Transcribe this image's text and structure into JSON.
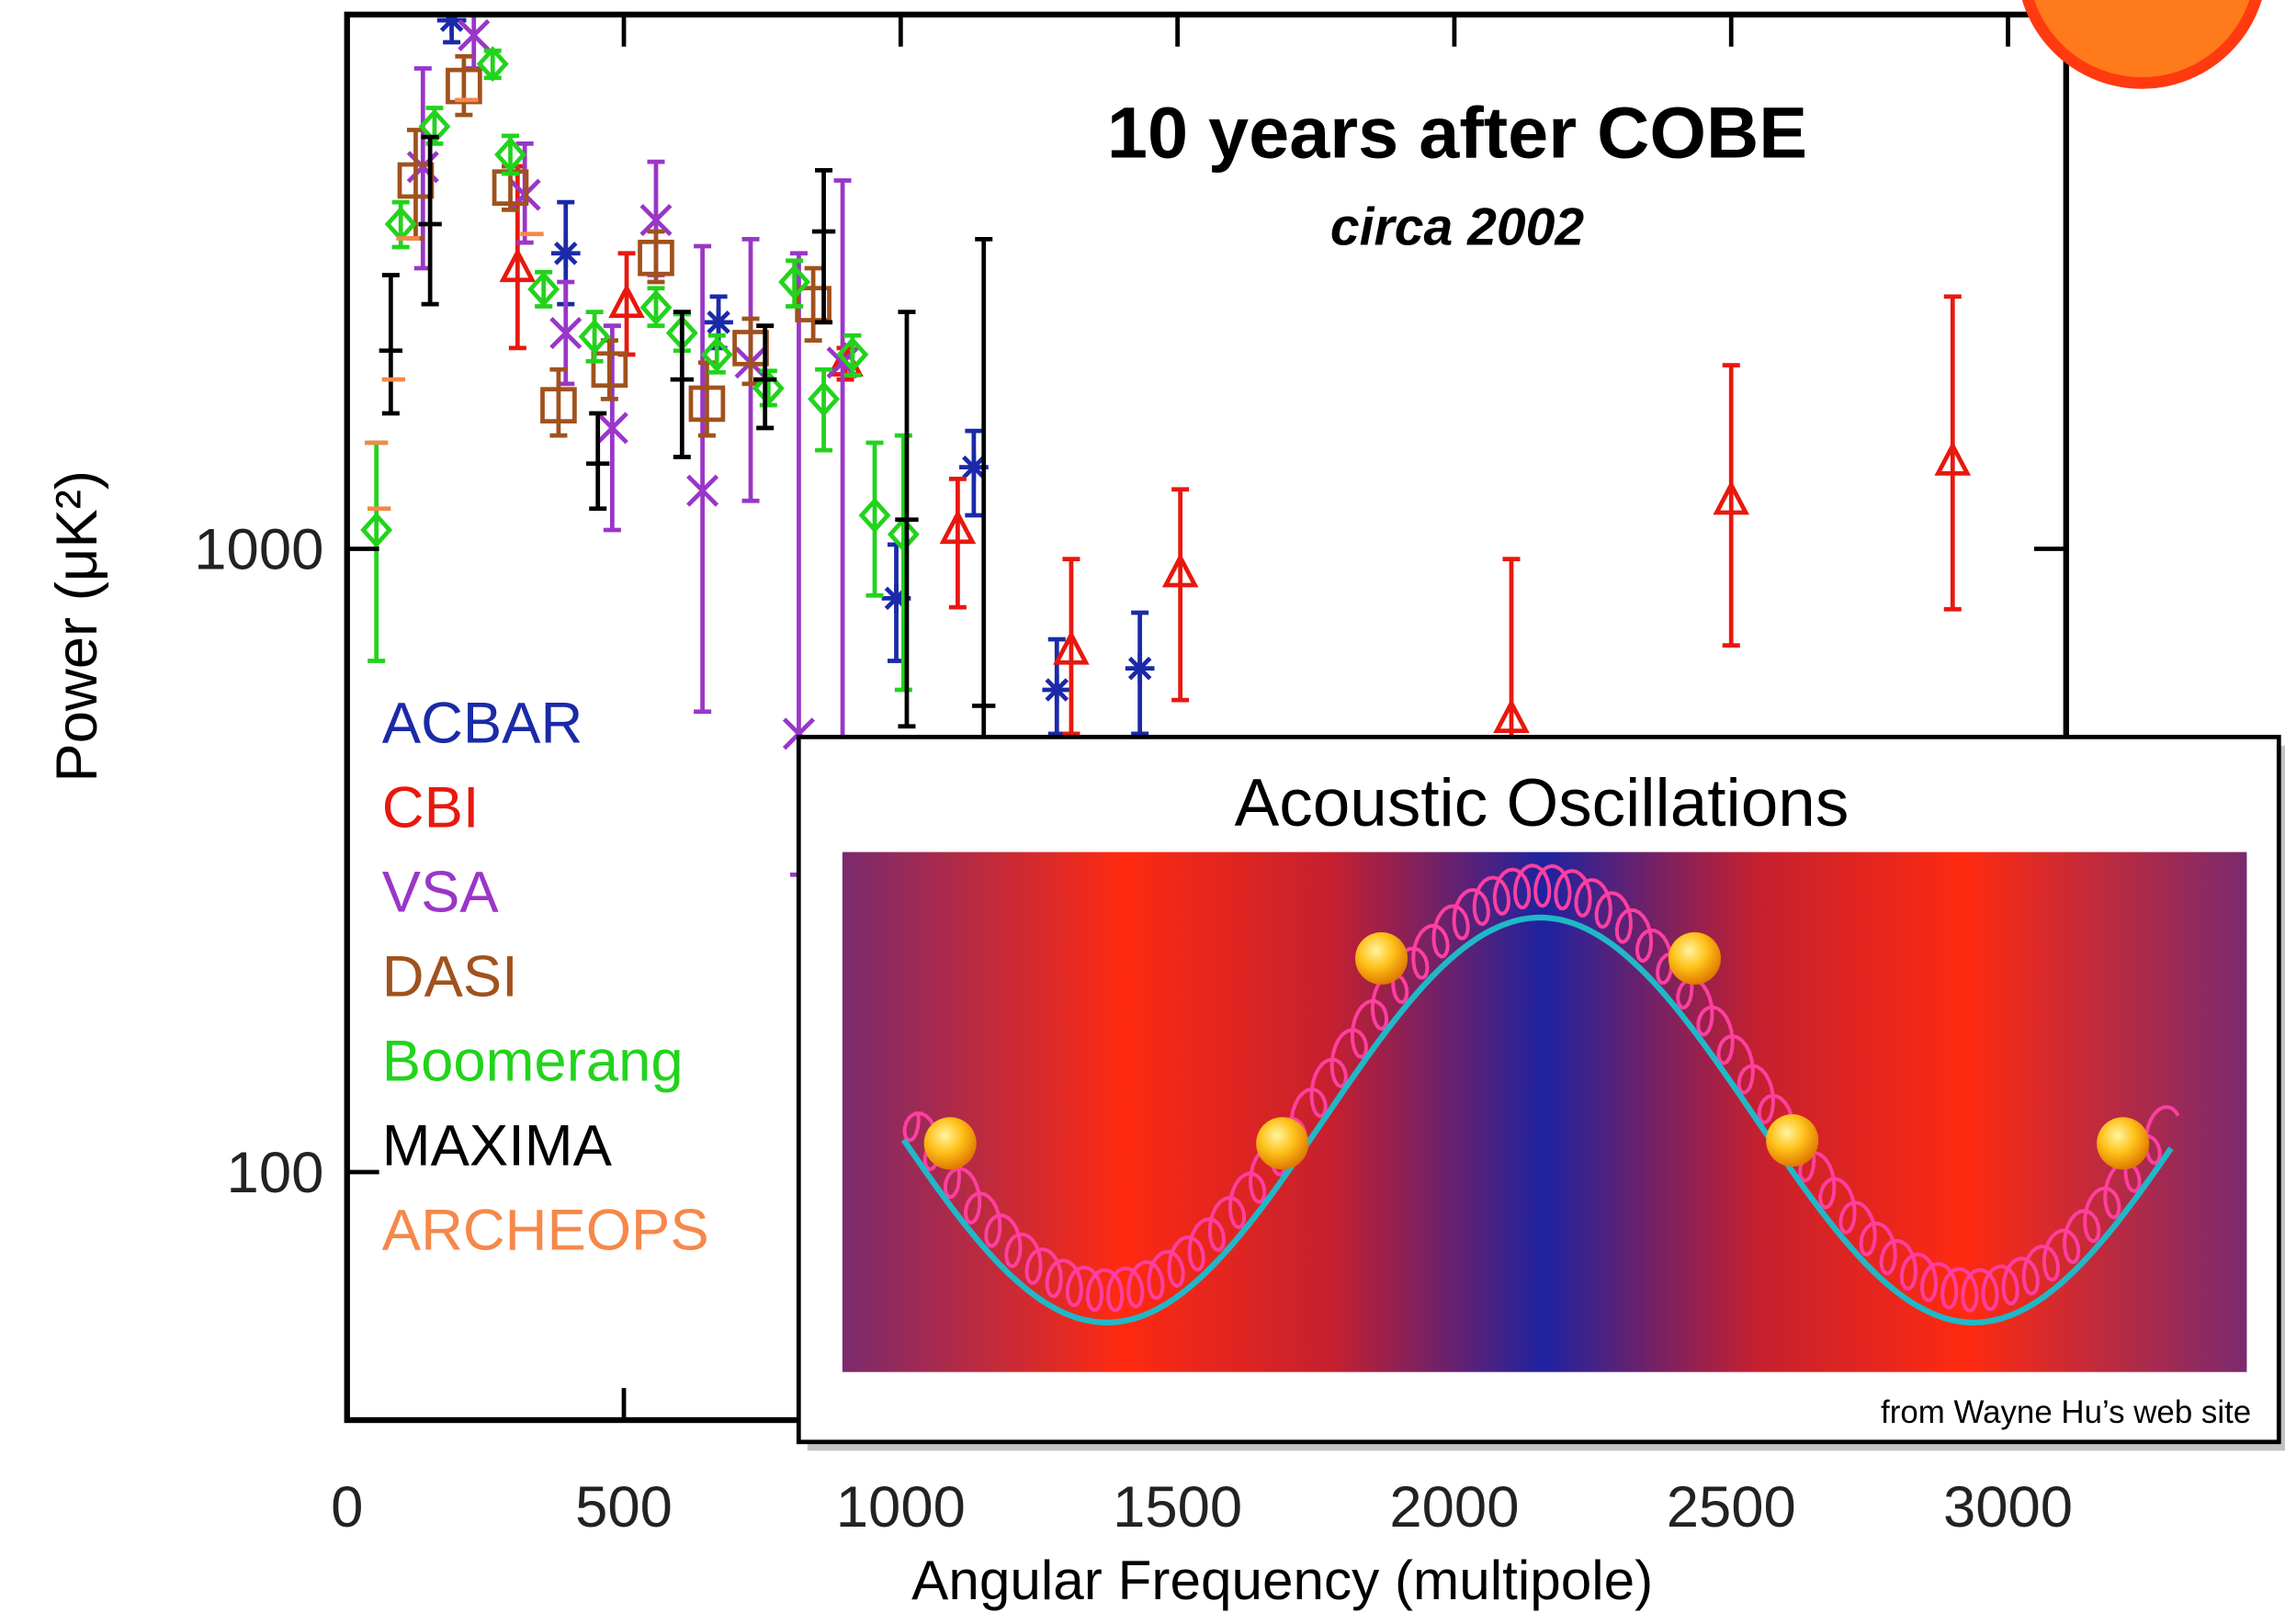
{
  "chart_data": {
    "type": "scatter",
    "title": "10 years after COBE",
    "subtitle": "circa 2002",
    "x_label": "Angular Frequency (multipole)",
    "y_label": "Power  (μK²)",
    "log_y": true,
    "xlim": [
      0,
      3105
    ],
    "ylim": [
      40,
      7200
    ],
    "xticks": [
      0,
      500,
      1000,
      1500,
      2000,
      2500,
      3000
    ],
    "yticks": [
      100,
      1000
    ],
    "legend": "left",
    "series": [
      {
        "name": "ACBAR",
        "color": "#1a2aa8",
        "marker": "asterisk",
        "x": [
          189,
          395,
          671,
          992,
          1132,
          1282,
          1432
        ],
        "values": [
          7050,
          2980,
          2310,
          833,
          1352,
          594,
          643
        ],
        "lower": [
          6500,
          2470,
          2100,
          661,
          1132,
          505,
          505
        ],
        "upper": [
          7300,
          3600,
          2540,
          1016,
          1546,
          716,
          790
        ]
      },
      {
        "name": "CBI",
        "color": "#e8180e",
        "marker": "triangle",
        "x": [
          308,
          505,
          900,
          1103,
          1308,
          1505,
          2103,
          2500,
          2900
        ],
        "values": [
          2820,
          2470,
          1990,
          1072,
          686,
          913,
          533,
          1194,
          1380
        ],
        "lower": [
          2100,
          2050,
          1870,
          806,
          505,
          572,
          300,
          700,
          800
        ],
        "upper": [
          4110,
          2980,
          2100,
          1295,
          963,
          1246,
          963,
          1971,
          2540
        ]
      },
      {
        "name": "VSA",
        "color": "#9a36c8",
        "marker": "x",
        "x": [
          229,
          137,
          321,
          395,
          479,
          558,
          642,
          729,
          816,
          895
        ],
        "values": [
          6670,
          4100,
          3700,
          2220,
          1563,
          3370,
          1240,
          1990,
          505,
          1990
        ],
        "lower": [
          5900,
          2820,
          3100,
          1840,
          1072,
          2750,
          548,
          1194,
          300,
          400
        ],
        "upper": [
          7300,
          5900,
          4470,
          2680,
          2280,
          4180,
          3060,
          3140,
          2980,
          3900
        ]
      },
      {
        "name": "DASI",
        "color": "#a0521d",
        "marker": "square",
        "x": [
          124,
          211,
          295,
          382,
          474,
          558,
          650,
          729,
          842
        ],
        "values": [
          3900,
          5530,
          3800,
          1700,
          1940,
          2930,
          1710,
          2100,
          2470
        ],
        "lower": [
          3150,
          4970,
          3500,
          1520,
          1740,
          2680,
          1520,
          1840,
          2160
        ],
        "upper": [
          4700,
          6170,
          4110,
          1940,
          2160,
          3230,
          1990,
          2340,
          2820
        ]
      },
      {
        "name": "Boomerang",
        "color": "#22d31c",
        "marker": "diamond",
        "x": [
          53,
          97,
          158,
          263,
          295,
          355,
          447,
          558,
          605,
          668,
          761,
          808,
          861,
          913,
          953,
          1005
        ],
        "values": [
          1072,
          3320,
          4760,
          6000,
          4290,
          2610,
          2190,
          2440,
          2220,
          2050,
          1810,
          2680,
          1740,
          2050,
          1132,
          1055
        ],
        "lower": [
          661,
          3050,
          4470,
          5700,
          4000,
          2450,
          2000,
          2280,
          2080,
          1920,
          1700,
          2450,
          1440,
          1900,
          842,
          594
        ],
        "upper": [
          1480,
          3600,
          5100,
          6300,
          4600,
          2780,
          2400,
          2620,
          2380,
          2200,
          1930,
          2900,
          1940,
          2200,
          1480,
          1520
        ]
      },
      {
        "name": "MAXIMA",
        "color": "#000000",
        "marker": "dash",
        "x": [
          79,
          150,
          453,
          605,
          755,
          861,
          1011,
          1150
        ],
        "values": [
          2080,
          3320,
          1370,
          1870,
          1870,
          3230,
          1114,
          560
        ],
        "lower": [
          1650,
          2470,
          1160,
          1404,
          1563,
          2310,
          519,
          400
        ],
        "upper": [
          2750,
          4580,
          1650,
          2400,
          2280,
          4050,
          2400,
          3140
        ]
      },
      {
        "name": "ARCHEOPS",
        "color": "#f5884a",
        "marker": "dash",
        "x": [
          53,
          84,
          110,
          216,
          334,
          58
        ],
        "values": [
          1480,
          1870,
          3150,
          5250,
          3200,
          1160
        ]
      }
    ],
    "inset": {
      "title": "Acoustic Oscillations",
      "caption": "from Wayne Hu’s web site"
    }
  }
}
